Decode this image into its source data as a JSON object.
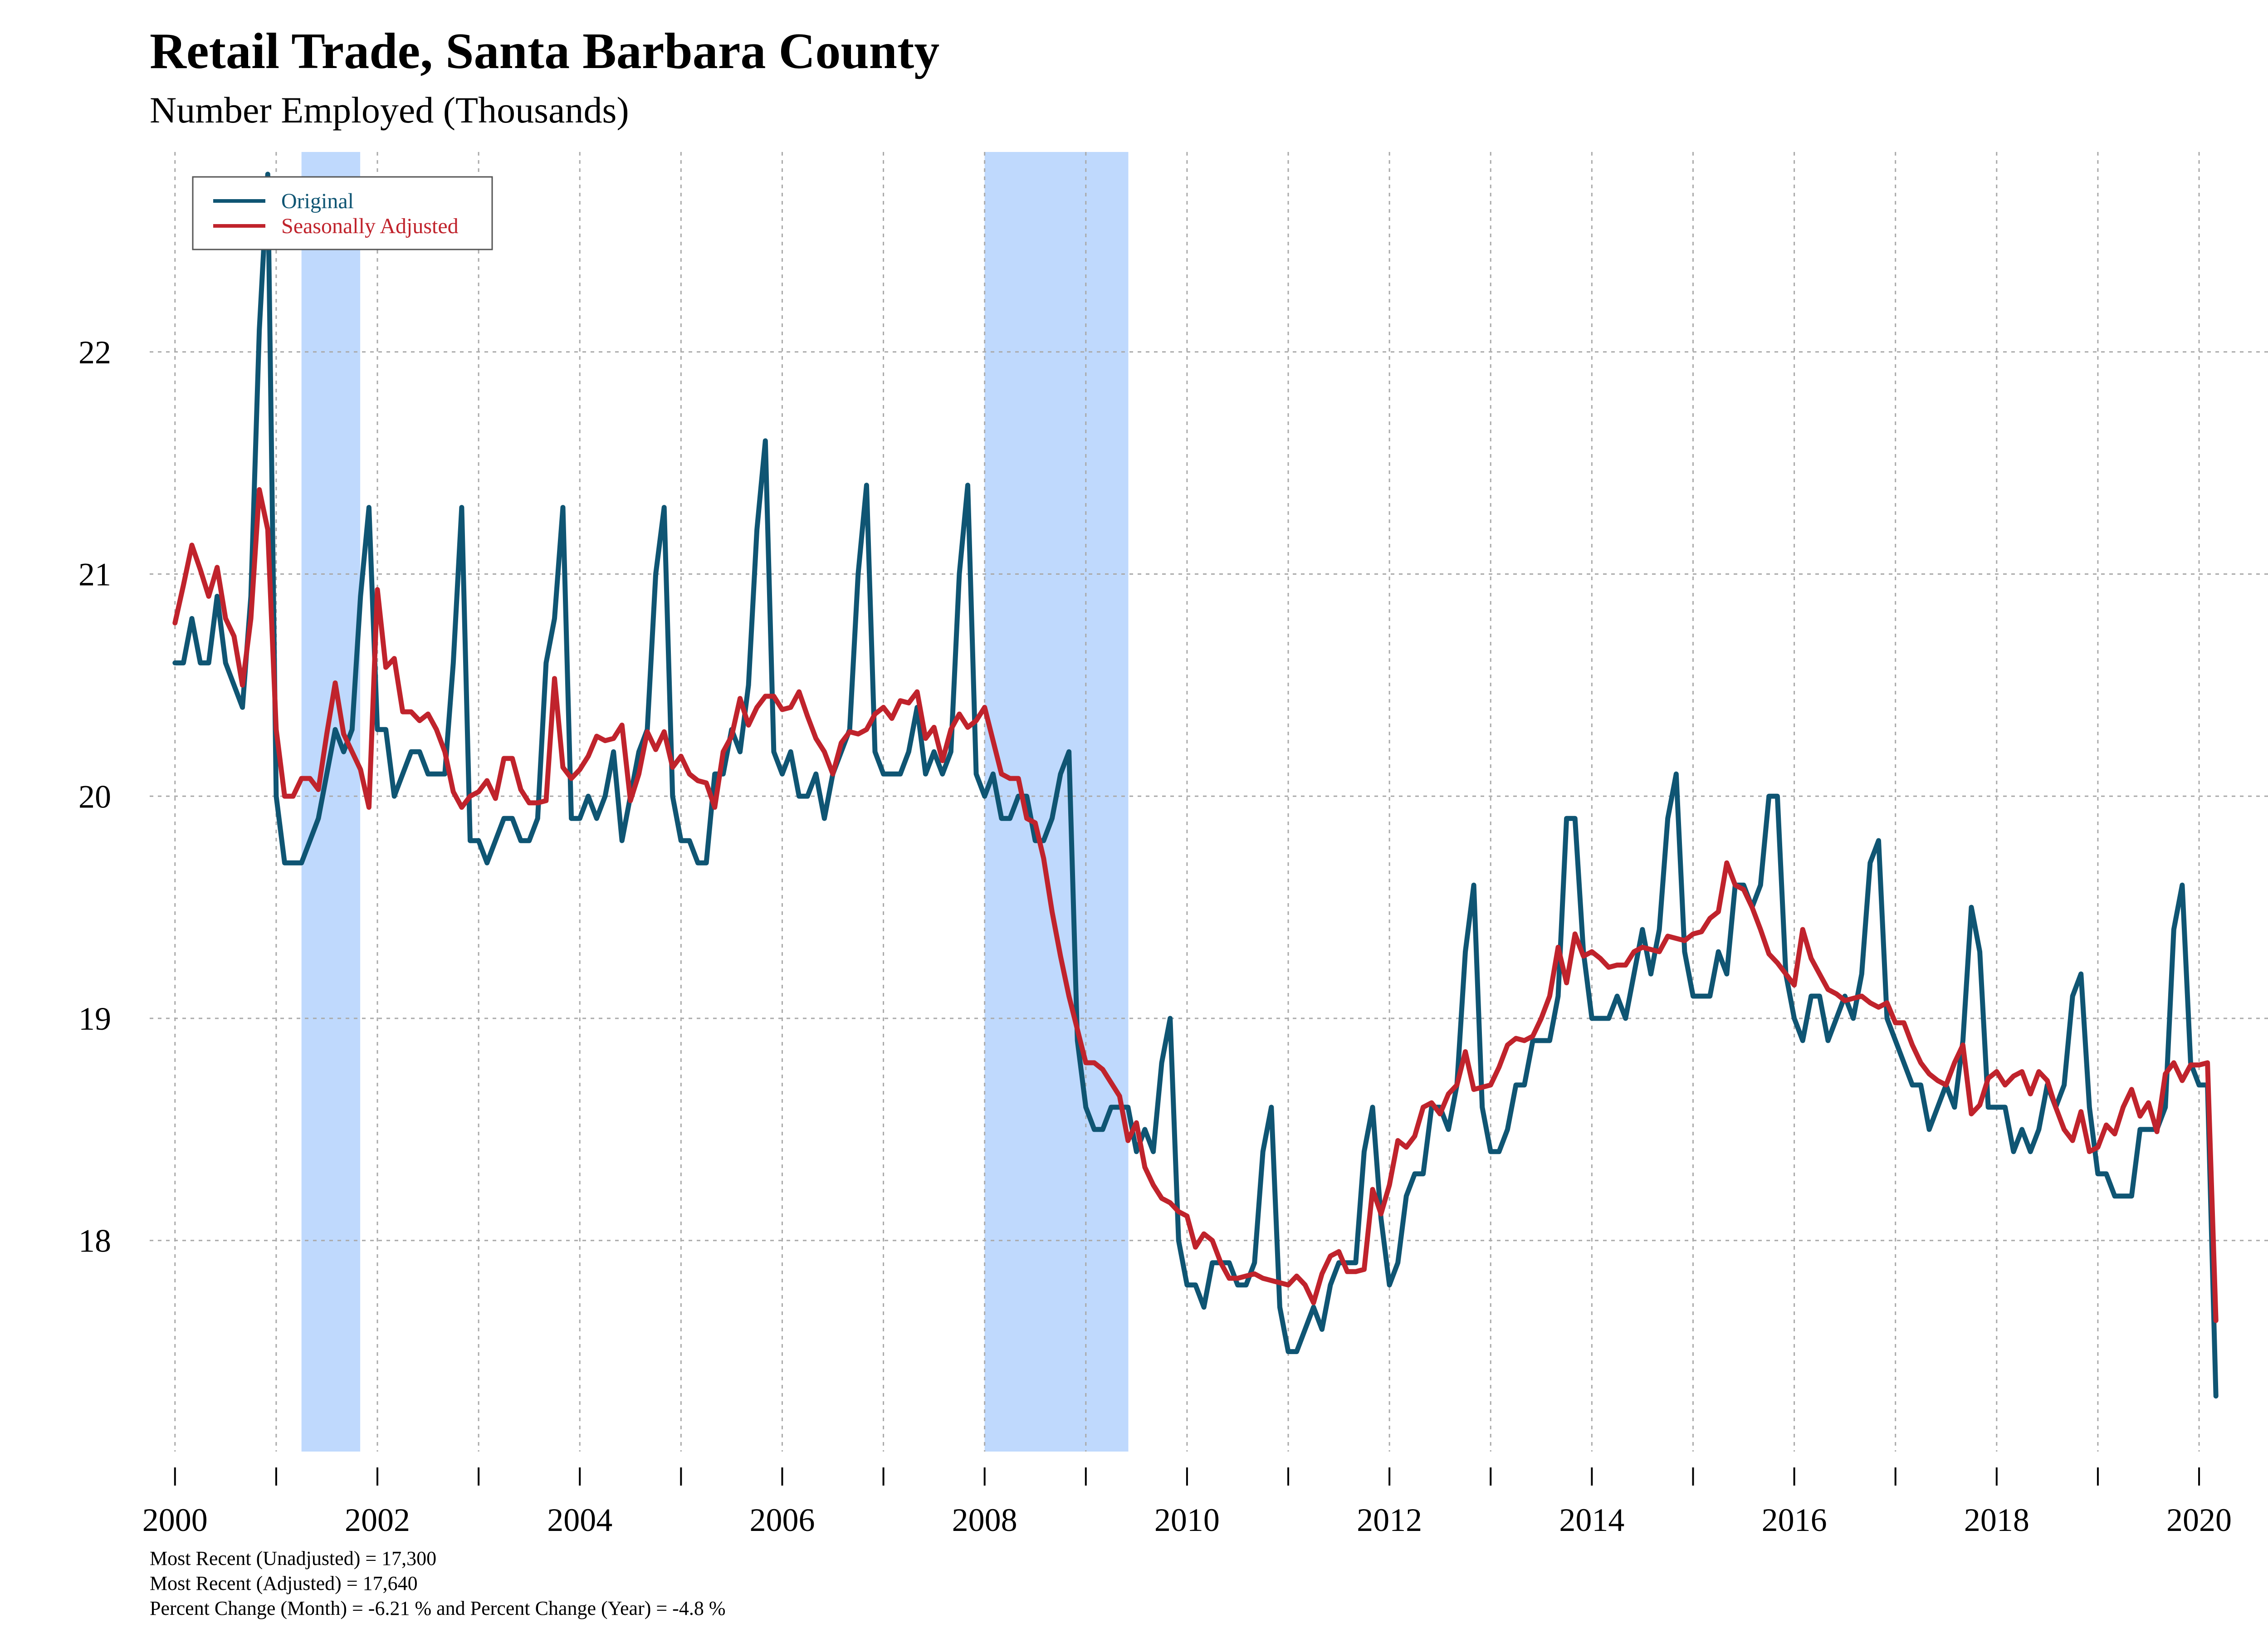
{
  "chart_data": {
    "type": "line",
    "title": "Retail Trade, Santa Barbara County",
    "subtitle": "Number Employed (Thousands)",
    "xlabel": "",
    "ylabel": "",
    "x_ticks": [
      "2000",
      "2002",
      "2004",
      "2006",
      "2008",
      "2010",
      "2012",
      "2014",
      "2016",
      "2018",
      "2020"
    ],
    "y_ticks": [
      "18",
      "19",
      "20",
      "21",
      "22"
    ],
    "xlim": [
      1999.75,
      2020.95
    ],
    "ylim": [
      17.05,
      22.9
    ],
    "grid": true,
    "legend_position": "top-left",
    "x_start": 2000.0,
    "x_step_months": 1,
    "recessions": [
      [
        2001.25,
        2001.83
      ],
      [
        2008.0,
        2009.42
      ]
    ],
    "recession_color": "#bfd9fd",
    "series": [
      {
        "name": "Original",
        "color": "#0f5573",
        "values": [
          20.6,
          20.6,
          20.8,
          20.6,
          20.6,
          20.9,
          20.6,
          20.5,
          20.4,
          20.9,
          22.1,
          22.8,
          20.0,
          19.7,
          19.7,
          19.7,
          19.8,
          19.9,
          20.1,
          20.3,
          20.2,
          20.3,
          20.9,
          21.3,
          20.3,
          20.3,
          20.0,
          20.1,
          20.2,
          20.2,
          20.1,
          20.1,
          20.1,
          20.6,
          21.3,
          19.8,
          19.8,
          19.7,
          19.8,
          19.9,
          19.9,
          19.8,
          19.8,
          19.9,
          20.6,
          20.8,
          21.3,
          19.9,
          19.9,
          20.0,
          19.9,
          20.0,
          20.2,
          19.8,
          20.0,
          20.2,
          20.3,
          21.0,
          21.3,
          20.0,
          19.8,
          19.8,
          19.7,
          19.7,
          20.1,
          20.1,
          20.3,
          20.2,
          20.5,
          21.2,
          21.6,
          20.2,
          20.1,
          20.2,
          20.0,
          20.0,
          20.1,
          19.9,
          20.1,
          20.2,
          20.3,
          21.0,
          21.4,
          20.2,
          20.1,
          20.1,
          20.1,
          20.2,
          20.4,
          20.1,
          20.2,
          20.1,
          20.2,
          21.0,
          21.4,
          20.1,
          20.0,
          20.1,
          19.9,
          19.9,
          20.0,
          20.0,
          19.8,
          19.8,
          19.9,
          20.1,
          20.2,
          18.9,
          18.6,
          18.5,
          18.5,
          18.6,
          18.6,
          18.6,
          18.4,
          18.5,
          18.4,
          18.8,
          19.0,
          18.0,
          17.8,
          17.8,
          17.7,
          17.9,
          17.9,
          17.9,
          17.8,
          17.8,
          17.9,
          18.4,
          18.6,
          17.7,
          17.5,
          17.5,
          17.6,
          17.7,
          17.6,
          17.8,
          17.9,
          17.9,
          17.9,
          18.4,
          18.6,
          18.1,
          17.8,
          17.9,
          18.2,
          18.3,
          18.3,
          18.6,
          18.6,
          18.5,
          18.7,
          19.3,
          19.6,
          18.6,
          18.4,
          18.4,
          18.5,
          18.7,
          18.7,
          18.9,
          18.9,
          18.9,
          19.1,
          19.9,
          19.9,
          19.3,
          19.0,
          19.0,
          19.0,
          19.1,
          19.0,
          19.2,
          19.4,
          19.2,
          19.4,
          19.9,
          20.1,
          19.3,
          19.1,
          19.1,
          19.1,
          19.3,
          19.2,
          19.6,
          19.6,
          19.5,
          19.6,
          20.0,
          20.0,
          19.2,
          19.0,
          18.9,
          19.1,
          19.1,
          18.9,
          19.0,
          19.1,
          19.0,
          19.2,
          19.7,
          19.8,
          19.0,
          18.9,
          18.8,
          18.7,
          18.7,
          18.5,
          18.6,
          18.7,
          18.6,
          18.9,
          19.5,
          19.3,
          18.6,
          18.6,
          18.6,
          18.4,
          18.5,
          18.4,
          18.5,
          18.7,
          18.6,
          18.7,
          19.1,
          19.2,
          18.6,
          18.3,
          18.3,
          18.2,
          18.2,
          18.2,
          18.5,
          18.5,
          18.5,
          18.6,
          19.4,
          19.6,
          18.8,
          18.7,
          18.7,
          17.3
        ]
      },
      {
        "name": "Seasonally Adjusted",
        "color": "#c0232c",
        "values": [
          20.78,
          20.95,
          21.13,
          21.02,
          20.9,
          21.03,
          20.8,
          20.72,
          20.5,
          20.8,
          21.38,
          21.2,
          20.3,
          20.0,
          20.0,
          20.08,
          20.08,
          20.03,
          20.28,
          20.51,
          20.28,
          20.2,
          20.12,
          19.95,
          20.93,
          20.58,
          20.62,
          20.38,
          20.38,
          20.34,
          20.37,
          20.3,
          20.2,
          20.02,
          19.95,
          20.0,
          20.02,
          20.07,
          19.99,
          20.17,
          20.17,
          20.03,
          19.97,
          19.97,
          19.98,
          20.53,
          20.13,
          20.08,
          20.12,
          20.18,
          20.27,
          20.25,
          20.26,
          20.32,
          19.98,
          20.1,
          20.29,
          20.21,
          20.29,
          20.13,
          20.18,
          20.1,
          20.07,
          20.06,
          19.95,
          20.2,
          20.27,
          20.44,
          20.32,
          20.4,
          20.45,
          20.45,
          20.39,
          20.4,
          20.47,
          20.36,
          20.26,
          20.2,
          20.1,
          20.24,
          20.29,
          20.28,
          20.3,
          20.37,
          20.4,
          20.35,
          20.43,
          20.42,
          20.47,
          20.26,
          20.31,
          20.16,
          20.3,
          20.37,
          20.31,
          20.34,
          20.4,
          20.25,
          20.1,
          20.08,
          20.08,
          19.9,
          19.88,
          19.72,
          19.48,
          19.28,
          19.1,
          18.95,
          18.8,
          18.8,
          18.77,
          18.71,
          18.65,
          18.45,
          18.53,
          18.33,
          18.25,
          18.19,
          18.17,
          18.13,
          18.11,
          17.97,
          18.03,
          18.0,
          17.9,
          17.83,
          17.83,
          17.84,
          17.85,
          17.83,
          17.82,
          17.81,
          17.8,
          17.84,
          17.8,
          17.72,
          17.85,
          17.93,
          17.95,
          17.86,
          17.86,
          17.87,
          18.23,
          18.12,
          18.25,
          18.45,
          18.42,
          18.47,
          18.6,
          18.62,
          18.57,
          18.66,
          18.7,
          18.85,
          18.68,
          18.69,
          18.7,
          18.78,
          18.88,
          18.91,
          18.9,
          18.92,
          19.0,
          19.1,
          19.32,
          19.16,
          19.38,
          19.28,
          19.3,
          19.27,
          19.23,
          19.24,
          19.24,
          19.3,
          19.32,
          19.31,
          19.3,
          19.37,
          19.36,
          19.35,
          19.38,
          19.39,
          19.45,
          19.48,
          19.7,
          19.6,
          19.58,
          19.5,
          19.4,
          19.29,
          19.25,
          19.2,
          19.15,
          19.4,
          19.27,
          19.2,
          19.13,
          19.11,
          19.08,
          19.09,
          19.1,
          19.07,
          19.05,
          19.07,
          18.98,
          18.98,
          18.88,
          18.8,
          18.75,
          18.72,
          18.7,
          18.8,
          18.88,
          18.57,
          18.61,
          18.73,
          18.76,
          18.7,
          18.74,
          18.76,
          18.66,
          18.76,
          18.72,
          18.6,
          18.5,
          18.45,
          18.58,
          18.4,
          18.42,
          18.52,
          18.48,
          18.6,
          18.68,
          18.56,
          18.62,
          18.49,
          18.75,
          18.8,
          18.72,
          18.79,
          18.79,
          18.8,
          17.64
        ]
      }
    ]
  },
  "footnotes": [
    "Most Recent (Unadjusted) = 17,300",
    "Most Recent (Adjusted) = 17,640",
    "Percent Change (Month) = -6.21 %  and  Percent Change (Year) = -4.8 %"
  ]
}
